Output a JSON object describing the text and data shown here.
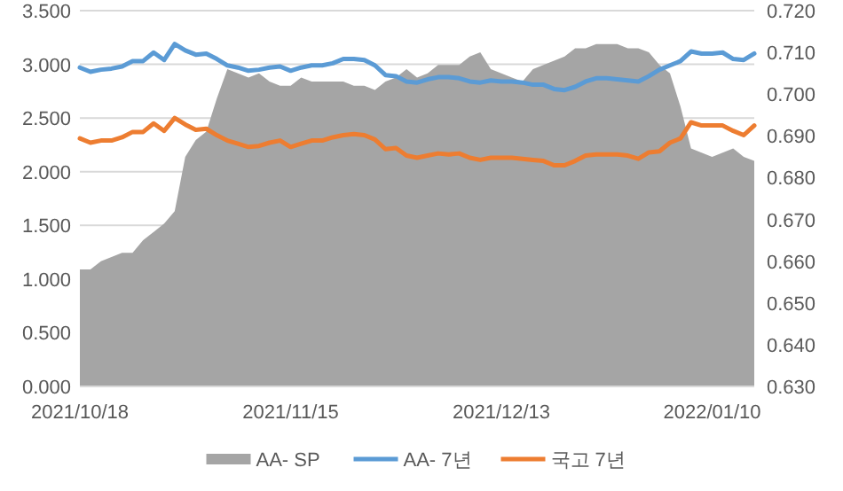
{
  "chart_data": {
    "type": "line",
    "categories": [
      "2021/10/18",
      null,
      null,
      null,
      null,
      null,
      null,
      null,
      null,
      null,
      null,
      null,
      null,
      null,
      null,
      null,
      null,
      null,
      null,
      null,
      "2021/11/15",
      null,
      null,
      null,
      null,
      null,
      null,
      null,
      null,
      null,
      null,
      null,
      null,
      null,
      null,
      null,
      null,
      null,
      null,
      null,
      "2021/12/13",
      null,
      null,
      null,
      null,
      null,
      null,
      null,
      null,
      null,
      null,
      null,
      null,
      null,
      null,
      null,
      null,
      null,
      null,
      null,
      "2022/01/10",
      null,
      null,
      null,
      null
    ],
    "series": [
      {
        "name": "AA- SP",
        "type": "area",
        "axis": "y2",
        "color": "#a5a5a5",
        "values": [
          0.658,
          0.658,
          0.66,
          0.661,
          0.662,
          0.662,
          0.665,
          0.667,
          0.669,
          0.672,
          0.685,
          0.689,
          0.691,
          0.699,
          0.706,
          0.705,
          0.704,
          0.705,
          0.703,
          0.702,
          0.702,
          0.704,
          0.703,
          0.703,
          0.703,
          0.703,
          0.702,
          0.702,
          0.701,
          0.703,
          0.704,
          0.706,
          0.704,
          0.705,
          0.707,
          0.707,
          0.707,
          0.709,
          0.71,
          0.706,
          0.705,
          0.704,
          0.703,
          0.706,
          0.707,
          0.708,
          0.709,
          0.711,
          0.711,
          0.712,
          0.712,
          0.712,
          0.711,
          0.711,
          0.71,
          0.707,
          0.705,
          0.697,
          0.687,
          0.686,
          0.685,
          0.686,
          0.687,
          0.685,
          0.684
        ]
      },
      {
        "name": "AA- 7년",
        "color": "#5b9bd5",
        "values": [
          2.97,
          2.93,
          2.95,
          2.96,
          2.98,
          3.03,
          3.03,
          3.11,
          3.04,
          3.19,
          3.13,
          3.09,
          3.1,
          3.05,
          2.99,
          2.97,
          2.94,
          2.95,
          2.97,
          2.98,
          2.94,
          2.97,
          2.99,
          2.99,
          3.01,
          3.05,
          3.05,
          3.04,
          2.99,
          2.9,
          2.89,
          2.84,
          2.83,
          2.86,
          2.88,
          2.88,
          2.87,
          2.84,
          2.83,
          2.85,
          2.84,
          2.84,
          2.83,
          2.81,
          2.81,
          2.77,
          2.76,
          2.79,
          2.84,
          2.87,
          2.87,
          2.86,
          2.85,
          2.84,
          2.89,
          2.95,
          2.99,
          3.03,
          3.12,
          3.1,
          3.1,
          3.11,
          3.05,
          3.04,
          3.1
        ]
      },
      {
        "name": "국고 7년",
        "color": "#ed7d31",
        "values": [
          2.31,
          2.27,
          2.29,
          2.29,
          2.32,
          2.37,
          2.37,
          2.45,
          2.38,
          2.5,
          2.44,
          2.39,
          2.4,
          2.34,
          2.29,
          2.26,
          2.23,
          2.24,
          2.27,
          2.29,
          2.23,
          2.26,
          2.29,
          2.29,
          2.32,
          2.34,
          2.35,
          2.34,
          2.3,
          2.21,
          2.22,
          2.15,
          2.13,
          2.15,
          2.17,
          2.16,
          2.17,
          2.13,
          2.11,
          2.13,
          2.13,
          2.13,
          2.12,
          2.11,
          2.1,
          2.06,
          2.06,
          2.1,
          2.15,
          2.16,
          2.16,
          2.16,
          2.15,
          2.12,
          2.18,
          2.19,
          2.27,
          2.31,
          2.46,
          2.43,
          2.43,
          2.43,
          2.38,
          2.34,
          2.43
        ]
      }
    ],
    "ylim": [
      0,
      3.5
    ],
    "yticks": [
      {
        "value": 0,
        "label": "0.000"
      },
      {
        "value": 0.5,
        "label": "0.500"
      },
      {
        "value": 1,
        "label": "1.000"
      },
      {
        "value": 1.5,
        "label": "1.500"
      },
      {
        "value": 2,
        "label": "2.000"
      },
      {
        "value": 2.5,
        "label": "2.500"
      },
      {
        "value": 3,
        "label": "3.000"
      },
      {
        "value": 3.5,
        "label": "3.500"
      }
    ],
    "y2lim": [
      0.63,
      0.72
    ],
    "y2ticks": [
      {
        "value": 0.63,
        "label": "0.630"
      },
      {
        "value": 0.64,
        "label": "0.640"
      },
      {
        "value": 0.65,
        "label": "0.650"
      },
      {
        "value": 0.66,
        "label": "0.660"
      },
      {
        "value": 0.67,
        "label": "0.670"
      },
      {
        "value": 0.68,
        "label": "0.680"
      },
      {
        "value": 0.69,
        "label": "0.690"
      },
      {
        "value": 0.7,
        "label": "0.700"
      },
      {
        "value": 0.71,
        "label": "0.710"
      },
      {
        "value": 0.72,
        "label": "0.720"
      }
    ],
    "grid": "y",
    "legend": "bottom"
  }
}
